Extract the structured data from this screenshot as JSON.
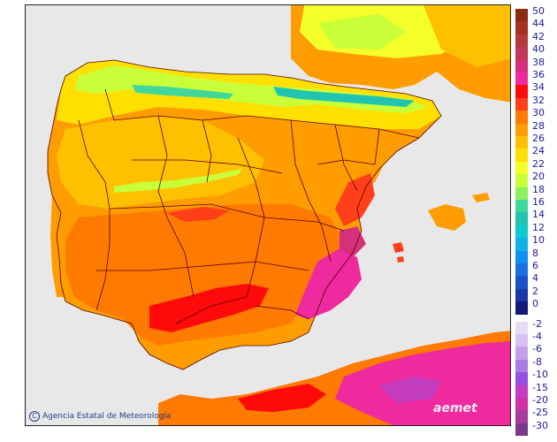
{
  "credit": {
    "symbol": "C",
    "text": "Agencia Estatal de Meteorología"
  },
  "brand": "aemet",
  "legend": {
    "positive": [
      {
        "label": "50",
        "color": "#8b2a10"
      },
      {
        "label": "44",
        "color": "#a33222"
      },
      {
        "label": "42",
        "color": "#b53a3a"
      },
      {
        "label": "40",
        "color": "#c4365a"
      },
      {
        "label": "38",
        "color": "#d6307a"
      },
      {
        "label": "36",
        "color": "#ee2a9e"
      },
      {
        "label": "34",
        "color": "#ff0a0a"
      },
      {
        "label": "32",
        "color": "#ff3e1a"
      },
      {
        "label": "30",
        "color": "#ff7a00"
      },
      {
        "label": "28",
        "color": "#ff9c00"
      },
      {
        "label": "26",
        "color": "#ffc000"
      },
      {
        "label": "24",
        "color": "#ffe000"
      },
      {
        "label": "22",
        "color": "#f4ff2a"
      },
      {
        "label": "20",
        "color": "#c8ff38"
      },
      {
        "label": "18",
        "color": "#8cf060"
      },
      {
        "label": "16",
        "color": "#40d89a"
      },
      {
        "label": "14",
        "color": "#20c4b0"
      },
      {
        "label": "12",
        "color": "#10c8d0"
      },
      {
        "label": "10",
        "color": "#10b0e8"
      },
      {
        "label": "8",
        "color": "#1090f0"
      },
      {
        "label": "6",
        "color": "#1a70e0"
      },
      {
        "label": "4",
        "color": "#1a50c8"
      },
      {
        "label": "2",
        "color": "#1a38a8"
      },
      {
        "label": "0",
        "color": "#121a78"
      }
    ],
    "negative": [
      {
        "label": "-2",
        "color": "#e8dcf4"
      },
      {
        "label": "-4",
        "color": "#d6c2ee"
      },
      {
        "label": "-6",
        "color": "#c2a2e6"
      },
      {
        "label": "-8",
        "color": "#a97ee2"
      },
      {
        "label": "-10",
        "color": "#9650e0"
      },
      {
        "label": "-15",
        "color": "#c43cc0"
      },
      {
        "label": "-20",
        "color": "#d030a6"
      },
      {
        "label": "-25",
        "color": "#a83c9c"
      },
      {
        "label": "-30",
        "color": "#7a3a8a"
      }
    ]
  }
}
